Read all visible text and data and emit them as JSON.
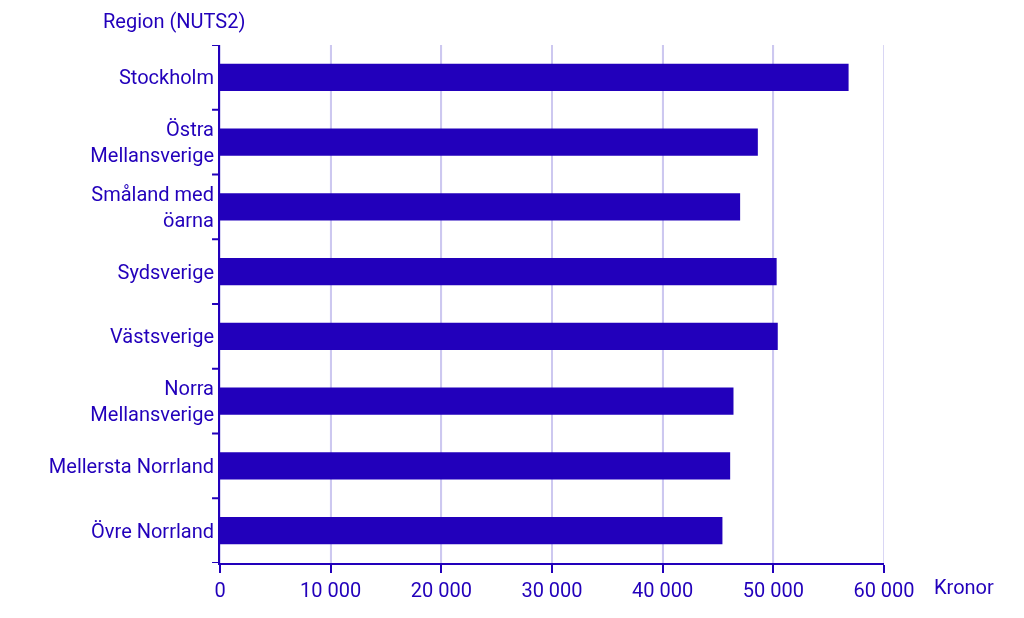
{
  "chart_data": {
    "type": "bar",
    "orientation": "horizontal",
    "ylabel": "Region (NUTS2)",
    "xlabel": "Kronor",
    "categories": [
      "Stockholm",
      "Östra\nMellansverige",
      "Småland med\nöarna",
      "Sydsverige",
      "Västsverige",
      "Norra\nMellansverige",
      "Mellersta Norrland",
      "Övre Norrland"
    ],
    "values": [
      56800,
      48600,
      47000,
      50300,
      50400,
      46400,
      46100,
      45400
    ],
    "color": "#2200bb",
    "xlim": [
      0,
      60000
    ],
    "xticks": [
      {
        "value": 0,
        "label": "0"
      },
      {
        "value": 10000,
        "label": "10 000"
      },
      {
        "value": 20000,
        "label": "20 000"
      },
      {
        "value": 30000,
        "label": "30 000"
      },
      {
        "value": 40000,
        "label": "40 000"
      },
      {
        "value": 50000,
        "label": "50 000"
      },
      {
        "value": 60000,
        "label": "60 000"
      }
    ],
    "grid": "x"
  }
}
